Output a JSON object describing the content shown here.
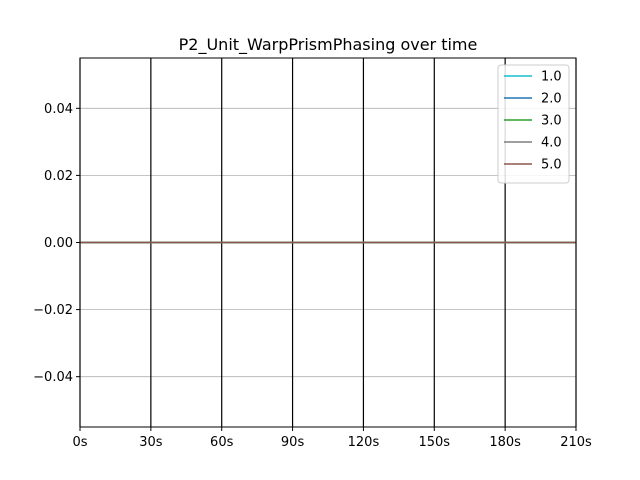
{
  "chart_data": {
    "type": "line",
    "title": "P2_Unit_WarpPrismPhasing over time",
    "xlabel": "",
    "ylabel": "",
    "x_ticks": [
      "0s",
      "30s",
      "60s",
      "90s",
      "120s",
      "150s",
      "180s",
      "210s"
    ],
    "x_tick_values": [
      0,
      30,
      60,
      90,
      120,
      150,
      180,
      210
    ],
    "xlim": [
      0,
      210
    ],
    "y_ticks": [
      "0.04",
      "0.02",
      "0.00",
      "−0.02",
      "−0.04"
    ],
    "y_tick_values": [
      0.04,
      0.02,
      0.0,
      -0.02,
      -0.04
    ],
    "ylim": [
      -0.055,
      0.055
    ],
    "grid": true,
    "legend_position": "top-right",
    "series": [
      {
        "name": "1.0",
        "color": "#17becf",
        "x": [
          0,
          210
        ],
        "y": [
          0,
          0
        ]
      },
      {
        "name": "2.0",
        "color": "#1f77b4",
        "x": [
          0,
          210
        ],
        "y": [
          0,
          0
        ]
      },
      {
        "name": "3.0",
        "color": "#2ca02c",
        "x": [
          0,
          210
        ],
        "y": [
          0,
          0
        ]
      },
      {
        "name": "4.0",
        "color": "#7f7f7f",
        "x": [
          0,
          210
        ],
        "y": [
          0,
          0
        ]
      },
      {
        "name": "5.0",
        "color": "#8c564b",
        "x": [
          0,
          210
        ],
        "y": [
          0,
          0
        ]
      }
    ]
  }
}
